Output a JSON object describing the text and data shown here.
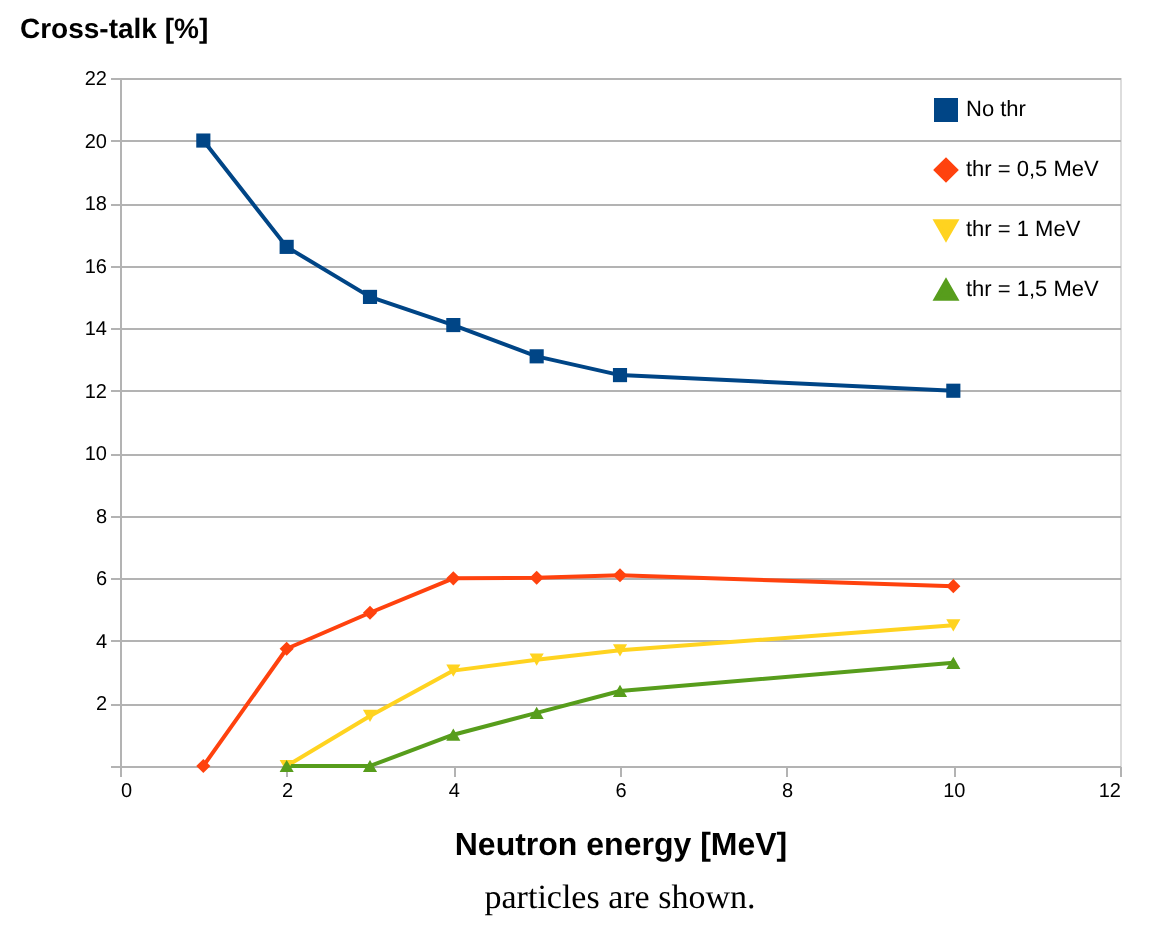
{
  "chart_data": {
    "type": "line",
    "title": "Cross-talk [%]",
    "xlabel": "Neutron energy [MeV]",
    "xlim": [
      0,
      12
    ],
    "xticks": [
      0,
      2,
      4,
      6,
      8,
      10,
      12
    ],
    "ylim": [
      0,
      22
    ],
    "yticks": [
      {
        "value": 0,
        "label": null
      },
      2,
      4,
      6,
      8,
      10,
      12,
      14,
      16,
      18,
      20,
      22
    ],
    "grid": "y",
    "legend": "top right",
    "line_style": "solid",
    "annotations": [
      "particles are shown."
    ],
    "series": [
      {
        "name": "No thr",
        "color": "#004586",
        "marker": "square",
        "x": [
          1,
          2,
          3,
          4,
          5,
          6,
          10
        ],
        "values": [
          20,
          16.6,
          15.0,
          14.1,
          13.1,
          12.5,
          12.0
        ]
      },
      {
        "name": "thr = 0,5 MeV",
        "color": "#ff420e",
        "marker": "diamond",
        "x": [
          1,
          2,
          3,
          4,
          5,
          6,
          10
        ],
        "values": [
          0,
          3.75,
          4.9,
          6.0,
          6.02,
          6.1,
          5.75
        ]
      },
      {
        "name": "thr = 1 MeV",
        "color": "#ffd320",
        "marker": "triangle-down",
        "x": [
          2,
          3,
          4,
          5,
          6,
          10
        ],
        "values": [
          0,
          1.6,
          3.05,
          3.4,
          3.7,
          4.5
        ]
      },
      {
        "name": "thr = 1,5 MeV",
        "color": "#579d1c",
        "marker": "triangle",
        "x": [
          2,
          3,
          4,
          5,
          6,
          10
        ],
        "values": [
          0,
          0,
          1.0,
          1.7,
          2.4,
          3.3
        ]
      }
    ]
  }
}
